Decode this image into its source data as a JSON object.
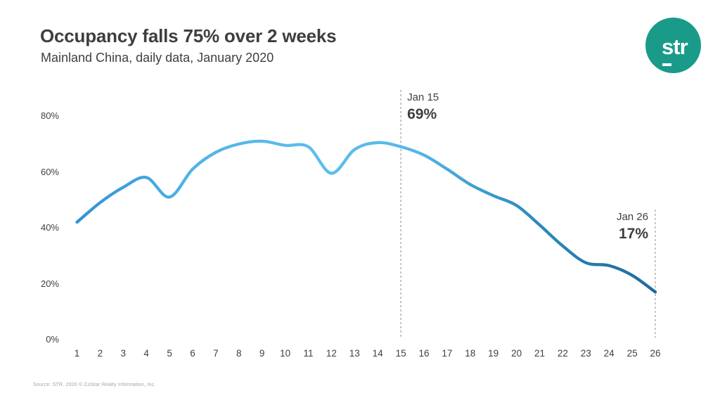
{
  "header": {
    "title": "Occupancy falls 75% over 2 weeks",
    "subtitle": "Mainland China, daily data, January 2020"
  },
  "logo": {
    "text": "str",
    "circle_color": "#1A9B8A",
    "text_color": "#FFFFFF"
  },
  "footer": {
    "source": "Source: STR. 2020 © CoStar Realty Information, Inc."
  },
  "chart_data": {
    "type": "line",
    "title": "Occupancy falls 75% over 2 weeks",
    "subtitle": "Mainland China, daily data, January 2020",
    "xlabel": "",
    "ylabel": "",
    "x": [
      1,
      2,
      3,
      4,
      5,
      6,
      7,
      8,
      9,
      10,
      11,
      12,
      13,
      14,
      15,
      16,
      17,
      18,
      19,
      20,
      21,
      22,
      23,
      24,
      25,
      26
    ],
    "series": [
      {
        "name": "Occupancy",
        "values": [
          42,
          49,
          54.5,
          58,
          51,
          61,
          67,
          70,
          71,
          69.5,
          69,
          59.5,
          68,
          70.5,
          69,
          66,
          61,
          55.5,
          51.5,
          48,
          41,
          33.5,
          27.5,
          26.5,
          23,
          17
        ]
      }
    ],
    "ylim": [
      0,
      80
    ],
    "yticks": [
      {
        "value": 0,
        "label": "0%"
      },
      {
        "value": 20,
        "label": "20%"
      },
      {
        "value": 40,
        "label": "40%"
      },
      {
        "value": 60,
        "label": "60%"
      },
      {
        "value": 80,
        "label": "80%"
      }
    ],
    "grid": false,
    "legend": "none",
    "annotations": [
      {
        "x": 15,
        "label": "Jan 15",
        "value": 69,
        "value_label": "69%",
        "side": "right-of-line"
      },
      {
        "x": 26,
        "label": "Jan 26",
        "value": 17,
        "value_label": "17%",
        "side": "left-of-line"
      }
    ],
    "line_gradient": [
      {
        "offset": 0,
        "color": "#2F93D4"
      },
      {
        "offset": 0.2,
        "color": "#50B4E8"
      },
      {
        "offset": 0.42,
        "color": "#5CBEEE"
      },
      {
        "offset": 0.58,
        "color": "#55B7E8"
      },
      {
        "offset": 0.75,
        "color": "#3391C4"
      },
      {
        "offset": 0.9,
        "color": "#2478AC"
      },
      {
        "offset": 1,
        "color": "#1D6BA0"
      }
    ],
    "reference_line_color": "#8C8C8C",
    "text_color": "#3F3F3F"
  }
}
